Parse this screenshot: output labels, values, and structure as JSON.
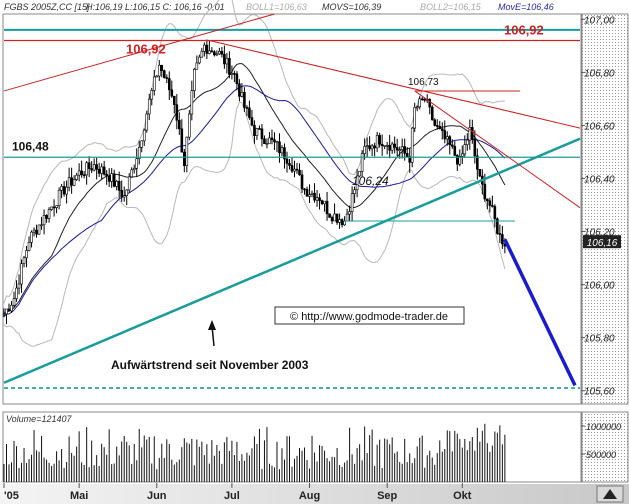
{
  "chart_data": {
    "type": "candlestick",
    "header": {
      "symbol": "FGBS 2005Z,CC [15]",
      "ohlc": "H:106,19 L:106,15 C: 106,16 -0,01",
      "boll1": "BOLL1=106,63",
      "movs": "MOVS=106,39",
      "boll2": "BOLL2=106,15",
      "move": "MovE=106,46"
    },
    "price_axis": {
      "min": 105.55,
      "max": 107.02,
      "ticks": [
        107.0,
        106.8,
        106.6,
        106.4,
        106.2,
        106.0,
        105.8,
        105.6
      ],
      "tick_labels": [
        "107,00",
        "106,80",
        "106,60",
        "106,40",
        "106,20",
        "106,00",
        "105,80",
        "105,60"
      ],
      "last_price": 106.16,
      "last_price_label": "106,16"
    },
    "time_axis": {
      "months": [
        {
          "label": "'05",
          "day": 0
        },
        {
          "label": "Mai",
          "day": 30
        },
        {
          "label": "Jun",
          "day": 61
        },
        {
          "label": "Jul",
          "day": 91
        },
        {
          "label": "Aug",
          "day": 122
        },
        {
          "label": "Sep",
          "day": 153
        },
        {
          "label": "Okt",
          "day": 183
        }
      ],
      "days_visible": 230
    },
    "annotations": {
      "level_high": {
        "value": 106.92,
        "label": "106,92"
      },
      "level_mid": {
        "value": 106.48,
        "label": "106,48"
      },
      "peak_label": {
        "value": 106.73,
        "label": "106,73"
      },
      "low_label": {
        "value": 106.24,
        "label": "106,24"
      },
      "trend_label": "Aufwärtstrend seit November 2003",
      "copyright": "© http://www.godmode-trader.de",
      "top_line": 106.96,
      "dashed_line": 105.61,
      "support_line": 106.24
    },
    "uptrend_line": {
      "from": {
        "day": 0,
        "price": 105.63
      },
      "to": {
        "day": 230,
        "price": 106.55
      }
    },
    "resistance_red_1": {
      "from": {
        "day": 0,
        "price": 106.73
      },
      "to": {
        "day": 108,
        "price": 107.02
      }
    },
    "resistance_red_2": {
      "from": {
        "day": 82,
        "price": 106.92
      },
      "to": {
        "day": 230,
        "price": 106.59
      }
    },
    "resistance_red_3": {
      "from": {
        "day": 164,
        "price": 106.73
      },
      "to": {
        "day": 230,
        "price": 106.29
      }
    },
    "red_short": {
      "from": {
        "day": 164,
        "price": 106.73
      },
      "to": {
        "day": 206,
        "price": 106.73
      }
    },
    "projection": {
      "from": {
        "day": 200,
        "price": 106.17
      },
      "to": {
        "day": 228,
        "price": 105.62
      }
    },
    "volume": {
      "title": "Volume=121407",
      "max": 1250000,
      "ticks": [
        1000000,
        500000
      ],
      "tick_labels": [
        "1000000",
        "500000"
      ]
    }
  }
}
